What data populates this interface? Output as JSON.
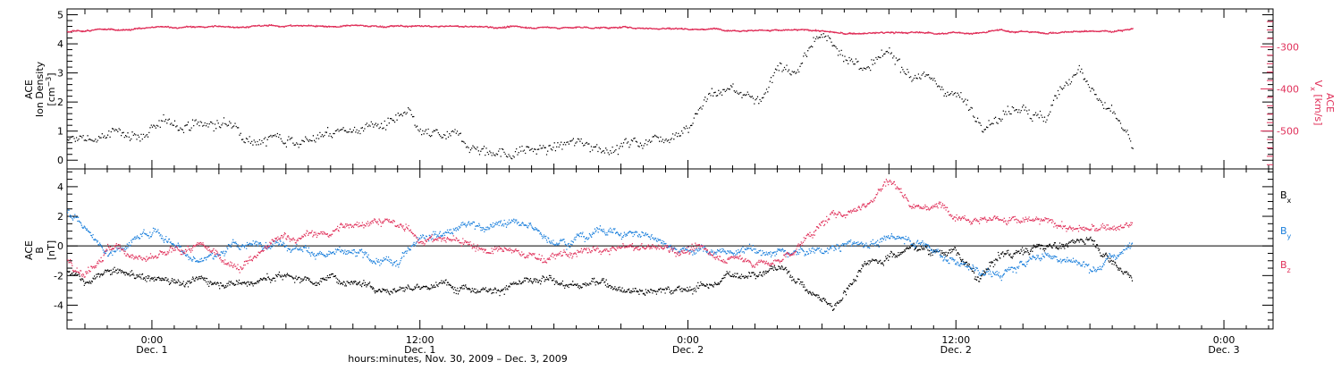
{
  "figure": {
    "x_axis_title": "hours:minutes, Nov. 30, 2009 – Dec.  3, 2009",
    "x_ticks": [
      {
        "time": "0:00",
        "date": "Dec. 1",
        "hours": 0
      },
      {
        "time": "12:00",
        "date": "Dec. 1",
        "hours": 12
      },
      {
        "time": "0:00",
        "date": "Dec. 2",
        "hours": 24
      },
      {
        "time": "12:00",
        "date": "Dec. 2",
        "hours": 36
      },
      {
        "time": "0:00",
        "date": "Dec. 3",
        "hours": 48
      }
    ],
    "x_range_hours": [
      -3.8,
      50.2
    ],
    "data_end_hours": 43.9
  },
  "colors": {
    "black": "#000000",
    "pink": "#e0305a",
    "blue": "#1a7fdc"
  },
  "chart_data": [
    {
      "type": "scatter",
      "panel": "top",
      "ylabel_lines": [
        "ACE",
        "Ion Density"
      ],
      "ylabel_unit": "[cm",
      "ylabel_unit_sup": "−3",
      "ylabel_unit_end": "]",
      "ylim": [
        -0.3,
        5.2
      ],
      "yticks": [
        0,
        1,
        2,
        3,
        4,
        5
      ],
      "x_hours": [
        -3.8,
        -2,
        0,
        2,
        4,
        6,
        8,
        9.5,
        11.5,
        12,
        14,
        16,
        18,
        20,
        22,
        23,
        24,
        25,
        26,
        27,
        27.5,
        28,
        29,
        29.5,
        30,
        31,
        32,
        33,
        34,
        34.5,
        35,
        36,
        37,
        38,
        39,
        40,
        41,
        41.5,
        42,
        43,
        43.5,
        43.9
      ],
      "values": [
        0.6,
        0.8,
        1.0,
        1.3,
        1.1,
        1.0,
        1.0,
        1.2,
        1.3,
        0.6,
        0.4,
        0.3,
        0.4,
        0.5,
        0.7,
        1.0,
        1.5,
        2.5,
        2.6,
        2.2,
        2.5,
        3.5,
        3.2,
        4.0,
        4.2,
        3.8,
        3.0,
        3.4,
        3.0,
        3.2,
        2.6,
        2.4,
        1.5,
        1.9,
        2.3,
        1.6,
        2.8,
        3.4,
        2.6,
        1.5,
        0.9,
        0.1
      ],
      "series_color": "black",
      "secondary": {
        "ylabel_lines": [
          "ACE",
          "V"
        ],
        "ylabel_sub": "x",
        "ylabel_unit": "[km/s]",
        "ylim": [
          -590,
          -210
        ],
        "yticks": [
          -300,
          -400,
          -500
        ],
        "x_hours": [
          -3.8,
          0,
          6,
          12,
          18,
          22,
          26,
          30,
          31,
          33,
          37,
          38,
          40,
          43,
          43.9
        ],
        "values": [
          -265,
          -255,
          -250,
          -252,
          -254,
          -255,
          -258,
          -262,
          -270,
          -267,
          -267,
          -262,
          -266,
          -262,
          -255
        ],
        "series_color": "pink"
      }
    },
    {
      "type": "scatter",
      "panel": "bottom",
      "ylabel_lines": [
        "ACE",
        "B"
      ],
      "ylabel_unit": "[nT]",
      "ylim": [
        -5.6,
        5.2
      ],
      "yticks": [
        4,
        2,
        0,
        -2,
        -4
      ],
      "zero_line": true,
      "series": [
        {
          "name": "B",
          "sub": "x",
          "color": "black",
          "x": [
            -3.8,
            -3,
            -2,
            0,
            3,
            6,
            9,
            12,
            16,
            20,
            24,
            26,
            28,
            30,
            30.5,
            32,
            34,
            36,
            37,
            38,
            40,
            42,
            43.9
          ],
          "values": [
            -1.5,
            -2.8,
            -2.0,
            -2.2,
            -2.3,
            -2.1,
            -2.2,
            -2.8,
            -2.5,
            -2.6,
            -2.9,
            -2.0,
            -1.2,
            -3.6,
            -4.0,
            -0.8,
            0.0,
            -0.3,
            -2.5,
            -0.6,
            0.0,
            0.5,
            -2.0
          ]
        },
        {
          "name": "B",
          "sub": "y",
          "color": "blue",
          "x": [
            -3.8,
            -3,
            -2,
            0,
            2,
            4,
            6,
            8,
            11,
            12,
            14,
            16,
            18,
            20,
            22,
            24,
            26,
            28,
            30,
            32,
            34,
            36,
            38,
            40,
            42,
            43.9
          ],
          "values": [
            2.3,
            1.2,
            -0.5,
            1.2,
            -0.7,
            0.0,
            0.4,
            -0.5,
            -1.5,
            1.0,
            1.5,
            1.6,
            0.5,
            1.2,
            0.7,
            0.0,
            -0.5,
            -0.5,
            -0.3,
            0.2,
            0.5,
            -1.0,
            -2.0,
            -0.5,
            -1.5,
            0.2
          ]
        },
        {
          "name": "B",
          "sub": "z",
          "color": "pink",
          "x": [
            -3.8,
            -3,
            -2,
            0,
            2,
            4,
            6,
            8,
            10,
            12,
            14,
            16,
            18,
            20,
            22,
            24,
            26,
            28,
            30,
            32,
            33,
            34,
            36,
            38,
            40,
            42,
            43.9
          ],
          "values": [
            -0.8,
            -1.5,
            0.2,
            -1.0,
            -0.3,
            -1.3,
            0.5,
            0.8,
            2.0,
            0.5,
            0.3,
            -0.6,
            -0.8,
            -0.4,
            -0.2,
            -0.2,
            -0.8,
            -1.2,
            1.5,
            3.0,
            4.6,
            3.0,
            2.5,
            2.0,
            1.5,
            1.0,
            1.3
          ]
        }
      ]
    }
  ]
}
